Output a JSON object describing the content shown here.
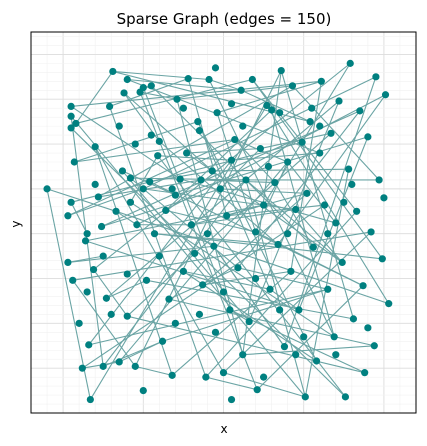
{
  "chart_data": {
    "type": "scatter",
    "title": "Sparse Graph  (edges = 150)",
    "xlabel": "x",
    "ylabel": "y",
    "grid": true,
    "node_color": "#008080",
    "edge_color": "#6aa4a4",
    "nodes": [
      [
        -0.1,
        0.5
      ],
      [
        0.03,
        -0.32
      ],
      [
        0.05,
        1.42
      ],
      [
        0.05,
        1.31
      ],
      [
        0.05,
        1.18
      ],
      [
        0.07,
        0.8
      ],
      [
        0.05,
        0.35
      ],
      [
        0.06,
        -0.52
      ],
      [
        0.08,
        1.23
      ],
      [
        0.03,
        0.2
      ],
      [
        0.12,
        -1.5
      ],
      [
        0.14,
        -0.08
      ],
      [
        0.16,
        -1.24
      ],
      [
        0.17,
        -1.85
      ],
      [
        0.19,
        -0.4
      ],
      [
        0.2,
        0.97
      ],
      [
        0.22,
        0.41
      ],
      [
        0.24,
        0.08
      ],
      [
        0.25,
        -1.48
      ],
      [
        0.27,
        -0.72
      ],
      [
        0.29,
        1.42
      ],
      [
        0.31,
        1.81
      ],
      [
        0.33,
        0.25
      ],
      [
        0.35,
        -1.43
      ],
      [
        0.37,
        0.7
      ],
      [
        0.38,
        1.57
      ],
      [
        0.4,
        -0.92
      ],
      [
        0.4,
        1.72
      ],
      [
        0.42,
        0.35
      ],
      [
        0.42,
        0.62
      ],
      [
        0.45,
        -1.48
      ],
      [
        0.46,
        0.1
      ],
      [
        0.48,
        1.58
      ],
      [
        0.5,
        0.5
      ],
      [
        0.5,
        1.63
      ],
      [
        0.52,
        -0.52
      ],
      [
        0.54,
        0.58
      ],
      [
        0.55,
        1.65
      ],
      [
        0.57,
        0.0
      ],
      [
        0.59,
        0.87
      ],
      [
        0.6,
        1.03
      ],
      [
        0.62,
        -1.2
      ],
      [
        0.64,
        0.26
      ],
      [
        0.66,
        -0.73
      ],
      [
        0.68,
        -1.58
      ],
      [
        0.7,
        0.43
      ],
      [
        0.71,
        1.5
      ],
      [
        0.73,
        0.61
      ],
      [
        0.75,
        -0.42
      ],
      [
        0.77,
        0.9
      ],
      [
        0.78,
        1.73
      ],
      [
        0.8,
        0.1
      ],
      [
        0.82,
        -0.22
      ],
      [
        0.84,
        1.25
      ],
      [
        0.86,
        0.6
      ],
      [
        0.87,
        -0.57
      ],
      [
        0.89,
        -1.6
      ],
      [
        0.91,
        1.72
      ],
      [
        0.93,
        0.7
      ],
      [
        0.94,
        -0.14
      ],
      [
        0.96,
        1.35
      ],
      [
        0.98,
        0.5
      ],
      [
        1.0,
        -1.55
      ],
      [
        1.02,
        0.2
      ],
      [
        1.04,
        -0.85
      ],
      [
        1.05,
        0.82
      ],
      [
        1.07,
        1.05
      ],
      [
        1.09,
        -0.38
      ],
      [
        1.11,
        1.6
      ],
      [
        1.12,
        -1.35
      ],
      [
        1.14,
        0.6
      ],
      [
        1.16,
        -0.98
      ],
      [
        1.18,
        1.72
      ],
      [
        1.2,
        0.02
      ],
      [
        1.21,
        -1.74
      ],
      [
        1.23,
        0.95
      ],
      [
        1.25,
        0.32
      ],
      [
        1.27,
        1.43
      ],
      [
        1.29,
        -0.62
      ],
      [
        1.3,
        1.38
      ],
      [
        1.32,
        0.57
      ],
      [
        1.34,
        -0.12
      ],
      [
        1.36,
        1.82
      ],
      [
        1.38,
        -1.26
      ],
      [
        1.4,
        0.8
      ],
      [
        1.42,
        -0.42
      ],
      [
        1.43,
        1.65
      ],
      [
        1.45,
        0.27
      ],
      [
        1.47,
        -0.85
      ],
      [
        1.49,
        1.02
      ],
      [
        1.51,
        -1.82
      ],
      [
        1.52,
        0.45
      ],
      [
        1.54,
        1.25
      ],
      [
        1.56,
        -0.15
      ],
      [
        1.58,
        -1.42
      ],
      [
        1.6,
        0.9
      ],
      [
        1.61,
        1.7
      ],
      [
        1.63,
        0.32
      ],
      [
        1.65,
        -0.62
      ],
      [
        1.67,
        1.12
      ],
      [
        1.69,
        -1.15
      ],
      [
        1.7,
        0.12
      ],
      [
        1.72,
        1.48
      ],
      [
        1.74,
        -0.32
      ],
      [
        1.76,
        -1.82
      ],
      [
        1.78,
        0.72
      ],
      [
        1.79,
        1.9
      ],
      [
        1.81,
        -0.95
      ],
      [
        1.83,
        0.25
      ],
      [
        1.85,
        1.37
      ],
      [
        1.87,
        -0.58
      ],
      [
        1.88,
        -1.55
      ],
      [
        1.9,
        1.08
      ],
      [
        1.92,
        0.02
      ],
      [
        1.94,
        -1.25
      ],
      [
        1.95,
        1.75
      ],
      [
        1.97,
        0.6
      ],
      [
        1.99,
        -0.28
      ],
      [
        2.01,
        1.55
      ],
      [
        2.03,
        -0.78
      ],
      [
        0.15,
        0.0
      ],
      [
        0.55,
        1.1
      ],
      [
        0.95,
        1.85
      ],
      [
        1.35,
        1.35
      ],
      [
        1.75,
        0.35
      ],
      [
        0.35,
        1.2
      ],
      [
        1.12,
        1.2
      ],
      [
        0.75,
        1.4
      ],
      [
        1.55,
        1.4
      ],
      [
        0.25,
        -0.25
      ],
      [
        0.9,
        0.0
      ],
      [
        1.4,
        0.0
      ],
      [
        0.68,
        0.5
      ],
      [
        1.28,
        0.75
      ],
      [
        0.85,
        1.15
      ],
      [
        1.6,
        1.2
      ],
      [
        0.45,
        1.0
      ],
      [
        1.05,
        1.45
      ],
      [
        0.2,
        0.55
      ],
      [
        1.8,
        0.55
      ],
      [
        0.6,
        -0.25
      ],
      [
        1.2,
        -0.5
      ],
      [
        0.4,
        -0.45
      ],
      [
        1.0,
        -0.65
      ],
      [
        1.65,
        0.0
      ],
      [
        0.3,
        -0.9
      ],
      [
        0.95,
        -1.1
      ],
      [
        1.5,
        -1.15
      ],
      [
        1.9,
        -1.05
      ],
      [
        0.1,
        -1.0
      ],
      [
        0.7,
        -1.0
      ],
      [
        1.25,
        -1.6
      ],
      [
        1.7,
        -1.35
      ],
      [
        0.5,
        -1.75
      ],
      [
        1.05,
        -1.85
      ],
      [
        1.45,
        -1.35
      ],
      [
        0.85,
        -0.9
      ],
      [
        1.35,
        -0.85
      ],
      [
        0.15,
        -0.65
      ],
      [
        2.0,
        0.4
      ]
    ],
    "edges": [
      [
        2,
        47
      ],
      [
        2,
        96
      ],
      [
        3,
        90
      ],
      [
        4,
        104
      ],
      [
        5,
        53
      ],
      [
        6,
        89
      ],
      [
        7,
        113
      ],
      [
        8,
        72
      ],
      [
        9,
        66
      ],
      [
        10,
        97
      ],
      [
        11,
        88
      ],
      [
        12,
        65
      ],
      [
        13,
        77
      ],
      [
        14,
        106
      ],
      [
        15,
        62
      ],
      [
        16,
        86
      ],
      [
        17,
        109
      ],
      [
        18,
        70
      ],
      [
        19,
        102
      ],
      [
        20,
        56
      ],
      [
        21,
        92
      ],
      [
        22,
        119
      ],
      [
        23,
        84
      ],
      [
        24,
        71
      ],
      [
        25,
        58
      ],
      [
        26,
        111
      ],
      [
        27,
        95
      ],
      [
        28,
        100
      ],
      [
        29,
        67
      ],
      [
        30,
        82
      ],
      [
        31,
        118
      ],
      [
        32,
        74
      ],
      [
        33,
        115
      ],
      [
        34,
        64
      ],
      [
        35,
        107
      ],
      [
        36,
        110
      ],
      [
        37,
        93
      ],
      [
        38,
        117
      ],
      [
        39,
        104
      ],
      [
        40,
        81
      ],
      [
        41,
        98
      ],
      [
        42,
        79
      ],
      [
        43,
        114
      ],
      [
        44,
        85
      ],
      [
        45,
        112
      ],
      [
        46,
        69
      ],
      [
        47,
        101
      ],
      [
        48,
        94
      ],
      [
        49,
        103
      ],
      [
        50,
        63
      ],
      [
        51,
        87
      ],
      [
        52,
        99
      ],
      [
        53,
        78
      ],
      [
        54,
        116
      ],
      [
        55,
        91
      ],
      [
        56,
        108
      ],
      [
        57,
        68
      ],
      [
        58,
        105
      ],
      [
        59,
        83
      ],
      [
        60,
        73
      ],
      [
        61,
        75
      ],
      [
        62,
        113
      ],
      [
        63,
        97
      ],
      [
        64,
        111
      ],
      [
        65,
        95
      ],
      [
        66,
        80
      ],
      [
        67,
        109
      ],
      [
        68,
        92
      ],
      [
        69,
        114
      ],
      [
        70,
        90
      ],
      [
        71,
        102
      ],
      [
        72,
        117
      ],
      [
        73,
        84
      ],
      [
        74,
        110
      ],
      [
        75,
        99
      ],
      [
        76,
        106
      ],
      [
        77,
        119
      ],
      [
        78,
        88
      ],
      [
        79,
        100
      ],
      [
        80,
        93
      ],
      [
        81,
        118
      ],
      [
        82,
        107
      ],
      [
        83,
        115
      ],
      [
        84,
        101
      ],
      [
        85,
        96
      ],
      [
        86,
        116
      ],
      [
        87,
        103
      ],
      [
        88,
        112
      ],
      [
        89,
        108
      ],
      [
        90,
        105
      ],
      [
        0,
        22
      ],
      [
        1,
        59
      ],
      [
        5,
        66
      ],
      [
        9,
        33
      ],
      [
        11,
        76
      ],
      [
        12,
        98
      ],
      [
        15,
        44
      ],
      [
        16,
        54
      ],
      [
        17,
        61
      ],
      [
        19,
        35
      ],
      [
        20,
        50
      ],
      [
        21,
        57
      ],
      [
        23,
        41
      ],
      [
        24,
        45
      ],
      [
        25,
        40
      ],
      [
        26,
        52
      ],
      [
        27,
        68
      ],
      [
        28,
        39
      ],
      [
        29,
        70
      ],
      [
        30,
        44
      ],
      [
        31,
        51
      ],
      [
        32,
        46
      ],
      [
        33,
        87
      ],
      [
        34,
        37
      ],
      [
        36,
        58
      ],
      [
        38,
        81
      ],
      [
        39,
        65
      ],
      [
        42,
        73
      ],
      [
        43,
        67
      ],
      [
        46,
        86
      ],
      [
        48,
        78
      ],
      [
        49,
        75
      ],
      [
        51,
        91
      ],
      [
        53,
        94
      ],
      [
        54,
        80
      ],
      [
        55,
        85
      ],
      [
        56,
        74
      ],
      [
        57,
        100
      ],
      [
        59,
        83
      ],
      [
        60,
        96
      ],
      [
        61,
        91
      ],
      [
        62,
        90
      ],
      [
        63,
        76
      ],
      [
        64,
        71
      ],
      [
        66,
        84
      ],
      [
        67,
        98
      ],
      [
        69,
        82
      ],
      [
        70,
        103
      ],
      [
        72,
        89
      ],
      [
        73,
        110
      ],
      [
        0,
        13
      ],
      [
        3,
        18
      ],
      [
        6,
        120
      ],
      [
        7,
        30
      ],
      [
        8,
        21
      ],
      [
        10,
        23
      ],
      [
        14,
        26
      ],
      [
        18,
        41
      ],
      [
        22,
        31
      ],
      [
        1,
        129
      ]
    ],
    "xlim": [
      -0.2,
      2.2
    ],
    "ylim": [
      -2.0,
      2.25
    ]
  }
}
